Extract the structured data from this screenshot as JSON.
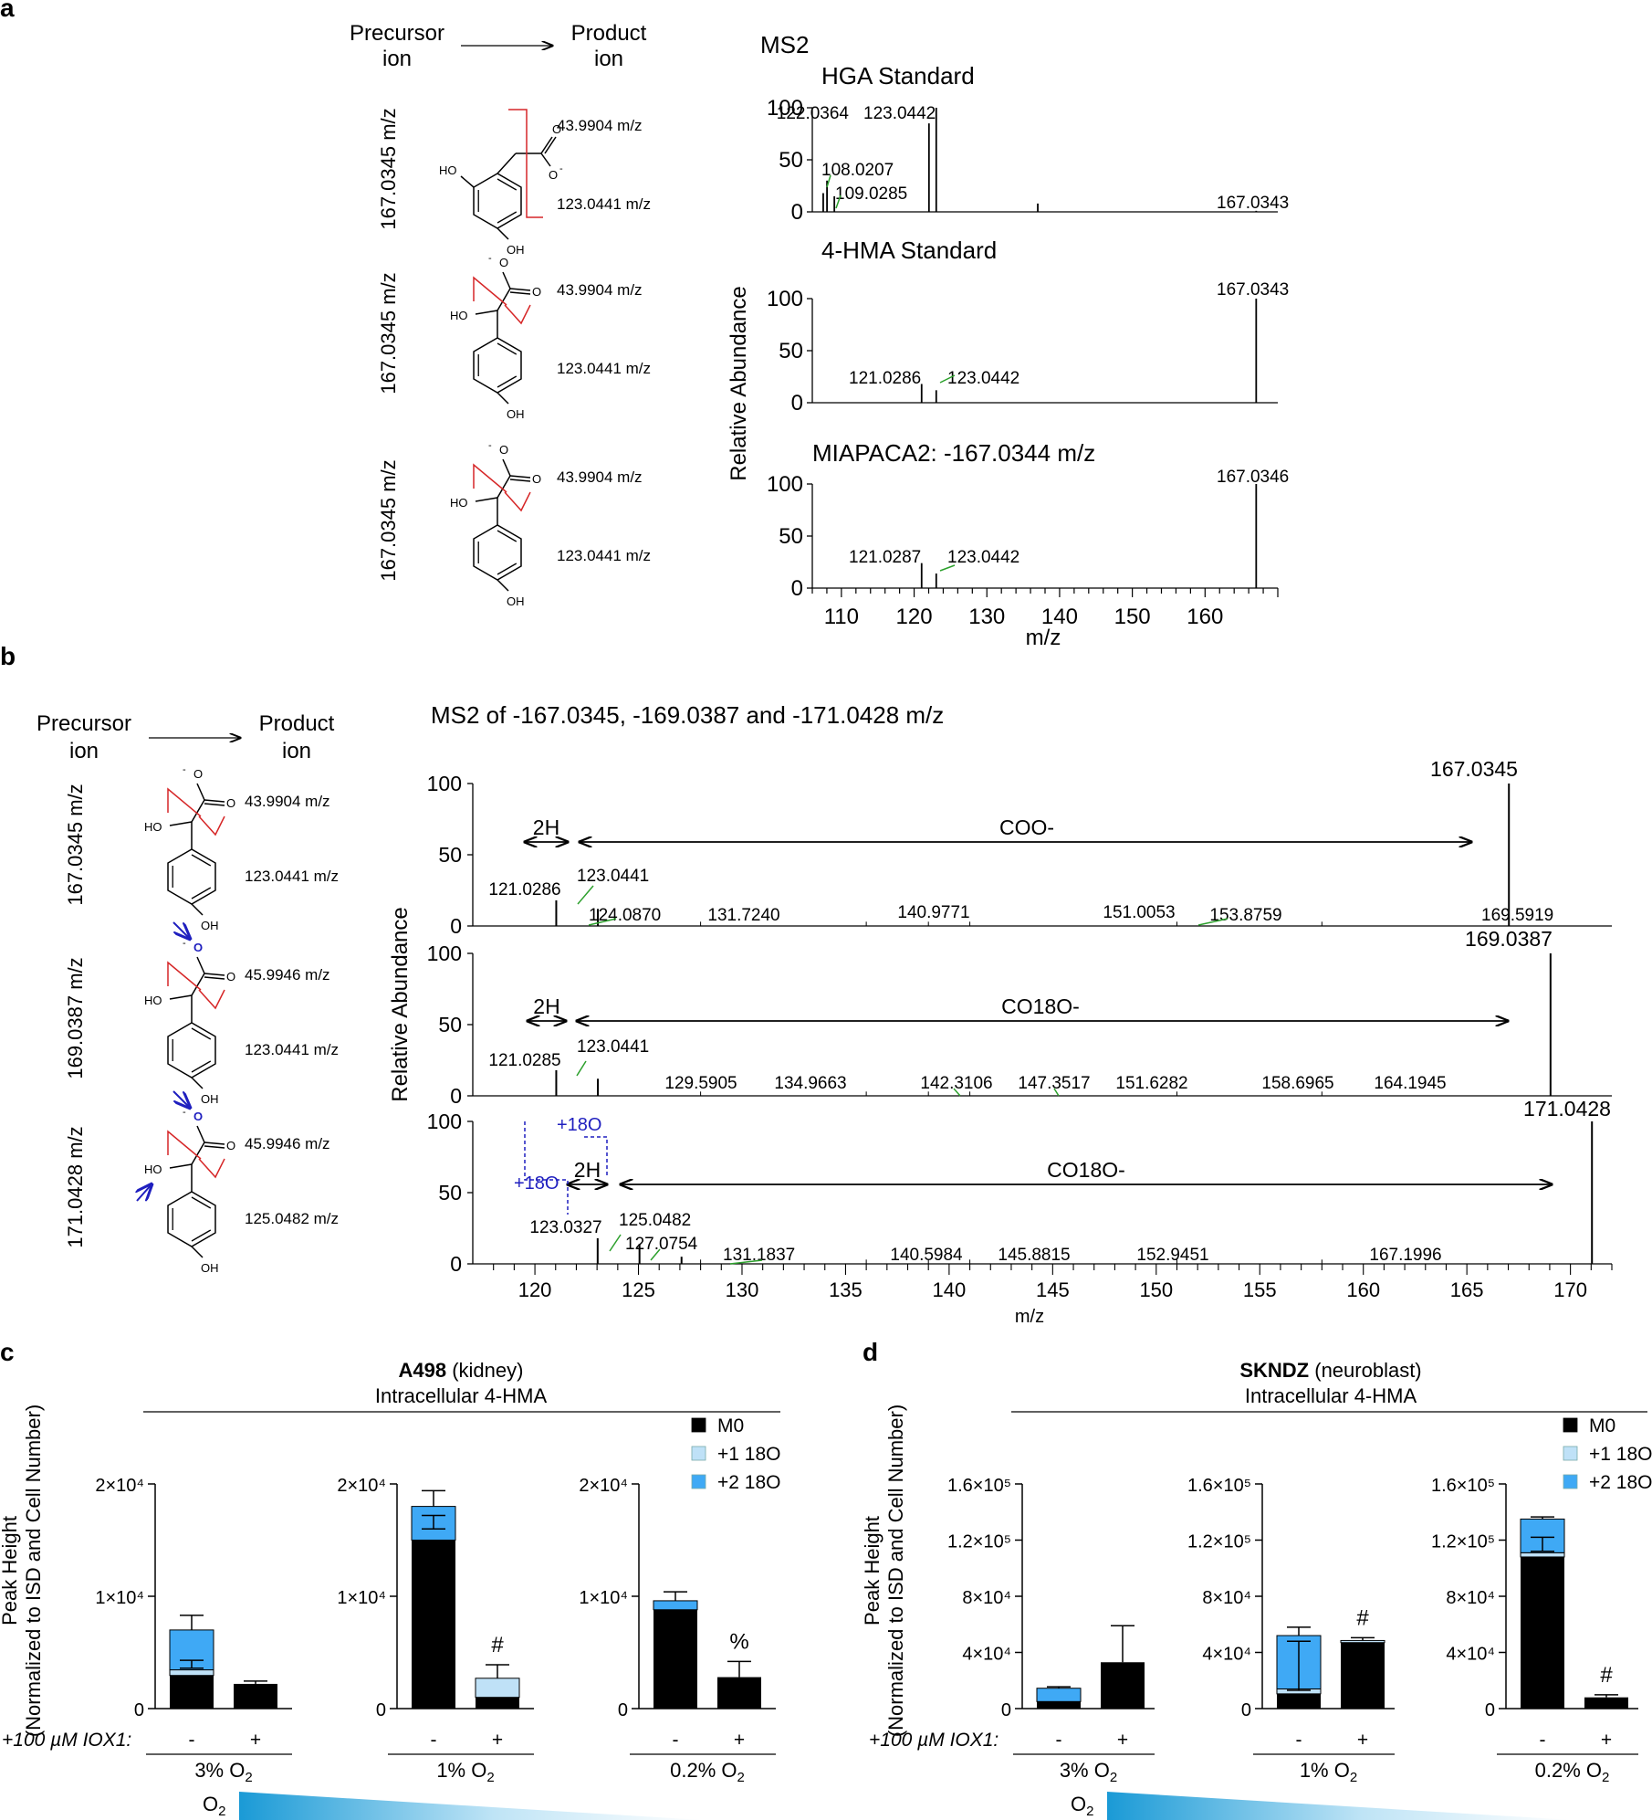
{
  "colors": {
    "ink": "#000000",
    "red": "#d62728",
    "green": "#2ca02c",
    "blue": "#1f1fbf",
    "light_blue": "#bfe1f7",
    "mid_blue": "#3fa9f5",
    "dark_blue": "#1a8bd6"
  },
  "panel_a": {
    "letter": "a",
    "precursor_label": [
      "Precursor",
      "ion"
    ],
    "product_label": [
      "Product",
      "ion"
    ],
    "structures": [
      {
        "precursor_mz": "167.0345 m/z",
        "product_top": "43.9904 m/z",
        "product_bottom": "123.0441 m/z",
        "atoms": [
          "HO",
          "O",
          "O",
          "-",
          "OH"
        ]
      },
      {
        "precursor_mz": "167.0345 m/z",
        "product_top": "43.9904 m/z",
        "product_bottom": "123.0441 m/z",
        "atoms": [
          "-",
          "O",
          "O",
          "HO",
          "OH"
        ]
      },
      {
        "precursor_mz": "167.0345 m/z",
        "product_top": "43.9904 m/z",
        "product_bottom": "123.0441 m/z",
        "atoms": [
          "-",
          "O",
          "O",
          "HO",
          "OH"
        ]
      }
    ]
  },
  "panel_b": {
    "letter": "b",
    "precursor_label": [
      "Precursor",
      "ion"
    ],
    "product_label": [
      "Product",
      "ion"
    ],
    "structures": [
      {
        "precursor_mz": "167.0345 m/z",
        "product_top": "43.9904 m/z",
        "product_bottom": "123.0441 m/z",
        "atoms": [
          "-",
          "O",
          "O",
          "HO",
          "OH"
        ]
      },
      {
        "precursor_mz": "169.0387 m/z",
        "product_top": "45.9946 m/z",
        "product_bottom": "123.0441 m/z",
        "atoms": [
          "-",
          "O",
          "O",
          "HO",
          "OH"
        ]
      },
      {
        "precursor_mz": "171.0428 m/z",
        "product_top": "45.9946 m/z",
        "product_bottom": "125.0482 m/z",
        "atoms": [
          "-",
          "O",
          "O",
          "HO",
          "OH"
        ]
      }
    ]
  },
  "chart_data": [
    {
      "id": "a_spectra",
      "type": "line",
      "title": "MS2",
      "xlabel": "m/z",
      "ylabel": "Relative Abundance",
      "xlim": [
        106,
        170
      ],
      "ylim": [
        0,
        100
      ],
      "xticks": [
        110,
        120,
        130,
        140,
        150,
        160
      ],
      "yticks": [
        0,
        50,
        100
      ],
      "series": [
        {
          "name": "HGA Standard",
          "peaks": [
            [
              107.5,
              18
            ],
            [
              108.02,
              30
            ],
            [
              109.03,
              15
            ],
            [
              122.04,
              85
            ],
            [
              123.04,
              100
            ],
            [
              137.0,
              8
            ],
            [
              167.03,
              1
            ]
          ],
          "labels": [
            {
              "text": "122.0364",
              "x": 122.04
            },
            {
              "text": "123.0442",
              "x": 123.04
            },
            {
              "text": "108.0207",
              "x": 108.02
            },
            {
              "text": "109.0285",
              "x": 109.03
            },
            {
              "text": "167.0343",
              "x": 167.03
            }
          ]
        },
        {
          "name": "4-HMA Standard",
          "peaks": [
            [
              121.03,
              18
            ],
            [
              123.04,
              12
            ],
            [
              167.03,
              100
            ]
          ],
          "labels": [
            {
              "text": "121.0286",
              "x": 121.03
            },
            {
              "text": "123.0442",
              "x": 123.04
            },
            {
              "text": "167.0343",
              "x": 167.03
            }
          ]
        },
        {
          "name": "MIAPACA2: -167.0344 m/z",
          "peaks": [
            [
              121.03,
              24
            ],
            [
              123.04,
              14
            ],
            [
              167.03,
              100
            ]
          ],
          "labels": [
            {
              "text": "121.0287",
              "x": 121.03
            },
            {
              "text": "123.0442",
              "x": 123.04
            },
            {
              "text": "167.0346",
              "x": 167.03
            }
          ]
        }
      ]
    },
    {
      "id": "b_spectra",
      "type": "line",
      "title": "MS2 of -167.0345, -169.0387 and -171.0428 m/z",
      "xlabel": "m/z",
      "ylabel": "Relative Abundance",
      "xlim": [
        117,
        172
      ],
      "ylim": [
        0,
        100
      ],
      "xticks": [
        120,
        125,
        130,
        135,
        140,
        145,
        150,
        155,
        160,
        165,
        170
      ],
      "yticks": [
        0,
        50,
        100
      ],
      "series": [
        {
          "name": "167.0345",
          "peaks": [
            [
              121.03,
              18
            ],
            [
              123.04,
              12
            ],
            [
              167.03,
              100
            ]
          ],
          "labels": [
            "121.0286",
            "123.0441",
            "124.0870",
            "131.7240",
            "140.9771",
            "151.0053",
            "153.8759",
            "169.5919",
            "167.0345"
          ],
          "annotations": {
            "left": "2H",
            "right": "COO-"
          }
        },
        {
          "name": "169.0387",
          "peaks": [
            [
              121.03,
              18
            ],
            [
              123.04,
              12
            ],
            [
              169.04,
              100
            ]
          ],
          "labels": [
            "121.0285",
            "123.0441",
            "129.5905",
            "134.9663",
            "142.3106",
            "147.3517",
            "151.6282",
            "158.6965",
            "164.1945",
            "169.0387"
          ],
          "annotations": {
            "left": "2H",
            "right": "CO18O-"
          }
        },
        {
          "name": "171.0428",
          "peaks": [
            [
              123.03,
              18
            ],
            [
              125.05,
              14
            ],
            [
              127.08,
              5
            ],
            [
              171.04,
              100
            ]
          ],
          "labels": [
            "123.0327",
            "125.0482",
            "127.0754",
            "131.1837",
            "140.5984",
            "145.8815",
            "152.9451",
            "167.1996",
            "171.0428"
          ],
          "annotations": {
            "left": "2H",
            "right": "CO18O-",
            "o18_a": "+18O",
            "o18_b": "+18O"
          }
        }
      ]
    },
    {
      "id": "c",
      "type": "bar",
      "letter": "c",
      "title": "A498 (kidney)",
      "subtitle": "Intracellular 4-HMA",
      "ylabel": "Peak Height (Normalized to ISD and Cell Number)",
      "treatment_label": "+100 µM IOX1:",
      "legend": [
        "M0",
        "+1 18O",
        "+2 18O"
      ],
      "groups": [
        {
          "name": "3% O2",
          "ylim": [
            0,
            20000
          ],
          "yticks": [
            "0",
            "1×10⁴",
            "2×10⁴"
          ],
          "yvals": [
            0,
            10000,
            20000
          ],
          "bars": [
            {
              "cond": "-",
              "M0": 2950,
              "p1": 500,
              "p2": 3550,
              "err": 1300,
              "inner_err": [
                3600,
                4300
              ]
            },
            {
              "cond": "+",
              "M0": 2200,
              "p1": 0,
              "p2": 0,
              "err": 250,
              "mark": ""
            }
          ]
        },
        {
          "name": "1% O2",
          "ylim": [
            0,
            20000
          ],
          "yticks": [
            "0",
            "1×10⁴",
            "2×10⁴"
          ],
          "yvals": [
            0,
            10000,
            20000
          ],
          "bars": [
            {
              "cond": "-",
              "M0": 15000,
              "p1": 0,
              "p2": 3000,
              "err": 1400,
              "inner_err": [
                16000,
                17200
              ]
            },
            {
              "cond": "+",
              "M0": 1000,
              "p1": 1700,
              "p2": 0,
              "err": 1200,
              "mark": "#"
            }
          ]
        },
        {
          "name": "0.2% O2",
          "ylim": [
            0,
            20000
          ],
          "yticks": [
            "0",
            "1×10⁴",
            "2×10⁴"
          ],
          "yvals": [
            0,
            10000,
            20000
          ],
          "bars": [
            {
              "cond": "-",
              "M0": 8800,
              "p1": 0,
              "p2": 800,
              "err": 800
            },
            {
              "cond": "+",
              "M0": 2800,
              "p1": 0,
              "p2": 0,
              "err": 1400,
              "mark": "%"
            }
          ]
        }
      ]
    },
    {
      "id": "d",
      "type": "bar",
      "letter": "d",
      "title": "SKNDZ (neuroblast)",
      "subtitle": "Intracellular 4-HMA",
      "ylabel": "Peak Height (Normalized to ISD and Cell Number)",
      "treatment_label": "+100 µM IOX1:",
      "legend": [
        "M0",
        "+1 18O",
        "+2 18O"
      ],
      "groups": [
        {
          "name": "3% O2",
          "ylim": [
            0,
            160000
          ],
          "yticks": [
            "0",
            "4×10⁴",
            "8×10⁴",
            "1.2×10⁵",
            "1.6×10⁵"
          ],
          "yvals": [
            0,
            40000,
            80000,
            120000,
            160000
          ],
          "bars": [
            {
              "cond": "-",
              "M0": 5000,
              "p1": 0,
              "p2": 9500,
              "err": 1000
            },
            {
              "cond": "+",
              "M0": 33000,
              "p1": 0,
              "p2": 0,
              "err": 26000,
              "mark": ""
            }
          ]
        },
        {
          "name": "1% O2",
          "ylim": [
            0,
            160000
          ],
          "yticks": [
            "0",
            "4×10⁴",
            "8×10⁴",
            "1.2×10⁵",
            "1.6×10⁵"
          ],
          "yvals": [
            0,
            40000,
            80000,
            120000,
            160000
          ],
          "bars": [
            {
              "cond": "-",
              "M0": 10500,
              "p1": 3500,
              "p2": 38000,
              "err": 6000,
              "inner_err": [
                13000,
                48000
              ]
            },
            {
              "cond": "+",
              "M0": 47000,
              "p1": 1500,
              "p2": 0,
              "err": 2000,
              "mark": "#"
            }
          ]
        },
        {
          "name": "0.2% O2",
          "ylim": [
            0,
            160000
          ],
          "yticks": [
            "0",
            "4×10⁴",
            "8×10⁴",
            "1.2×10⁵",
            "1.6×10⁵"
          ],
          "yvals": [
            0,
            40000,
            80000,
            120000,
            160000
          ],
          "bars": [
            {
              "cond": "-",
              "M0": 108000,
              "p1": 3000,
              "p2": 24000,
              "err": 1500,
              "inner_err": [
                112000,
                122000
              ]
            },
            {
              "cond": "+",
              "M0": 8000,
              "p1": 0,
              "p2": 0,
              "err": 1800,
              "mark": "#"
            }
          ]
        }
      ]
    }
  ],
  "gradient_label": "O2"
}
